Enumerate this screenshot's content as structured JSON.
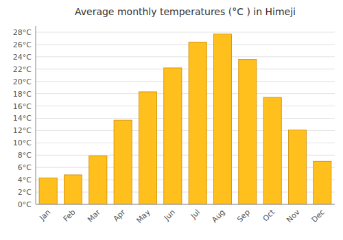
{
  "chart_data": {
    "type": "bar",
    "title": "Average monthly temperatures (°C ) in Himeji",
    "categories": [
      "Jan",
      "Feb",
      "Mar",
      "Apr",
      "May",
      "Jun",
      "Jul",
      "Aug",
      "Sep",
      "Oct",
      "Nov",
      "Dec"
    ],
    "values": [
      4.3,
      4.8,
      7.9,
      13.7,
      18.3,
      22.2,
      26.4,
      27.7,
      23.6,
      17.4,
      12.1,
      7.0
    ],
    "color": "#FFC01E",
    "ylim": [
      0,
      29
    ],
    "yticks": [
      {
        "value": 0,
        "label": "0°C"
      },
      {
        "value": 2,
        "label": "2°C"
      },
      {
        "value": 4,
        "label": "4°C"
      },
      {
        "value": 6,
        "label": "6°C"
      },
      {
        "value": 8,
        "label": "8°C"
      },
      {
        "value": 10,
        "label": "10°C"
      },
      {
        "value": 12,
        "label": "12°C"
      },
      {
        "value": 14,
        "label": "14°C"
      },
      {
        "value": 16,
        "label": "16°C"
      },
      {
        "value": 18,
        "label": "18°C"
      },
      {
        "value": 20,
        "label": "20°C"
      },
      {
        "value": 22,
        "label": "22°C"
      },
      {
        "value": 24,
        "label": "24°C"
      },
      {
        "value": 26,
        "label": "26°C"
      },
      {
        "value": 28,
        "label": "28°C"
      }
    ],
    "grid": true
  }
}
